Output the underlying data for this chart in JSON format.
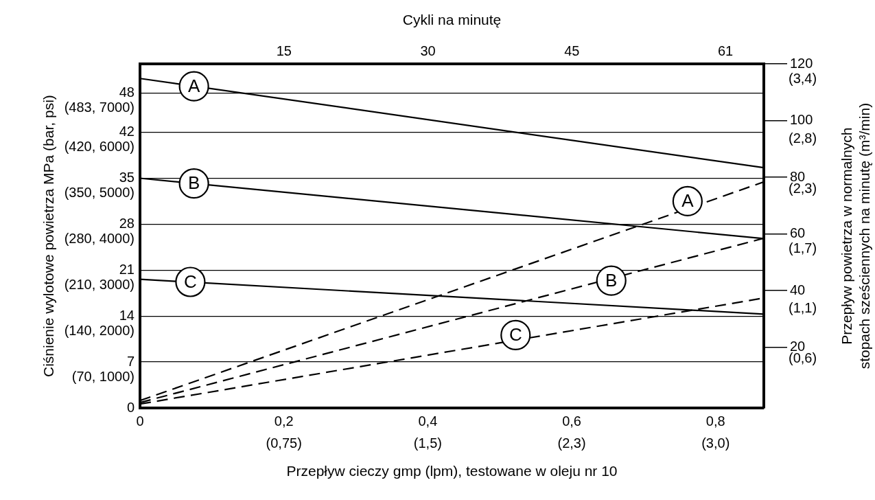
{
  "chart_data": {
    "type": "line",
    "xlabel": "Przepływ cieczy gmp (lpm), testowane w oleju nr 10",
    "ylabel": "Ciśnienie wylotowe powietrza MPa (bar, psi)",
    "y2label": "Przepływ powietrza w normalnych\nstopach sześciennych na minutę (m³/min)",
    "x2label": "Cykli na minutę",
    "x": [
      0,
      0.867
    ],
    "xlim": [
      0,
      0.867
    ],
    "xticks": [
      0,
      {
        "value": 0.2,
        "label": "0,2"
      },
      {
        "value": 0.4,
        "label": "0,4"
      },
      {
        "value": 0.6,
        "label": "0,6"
      },
      {
        "value": 0.8,
        "label": "0,8"
      }
    ],
    "x2lim": [
      0,
      65
    ],
    "x2ticks": [
      15,
      30,
      45,
      61
    ],
    "ylim": [
      0,
      52.4
    ],
    "yticks": [
      0,
      7,
      14,
      21,
      28,
      35,
      42,
      48
    ],
    "y2lim": [
      -1.4,
      120
    ],
    "y2ticks": [
      20,
      40,
      60,
      80,
      100,
      120
    ],
    "y3lim": [
      0.11,
      3.55
    ],
    "y3ticks": [
      {
        "value": 0.6,
        "label": "(0,6)"
      },
      {
        "value": 1.1,
        "label": "(1,1)"
      },
      {
        "value": 1.7,
        "label": "(1,7)"
      },
      {
        "value": 2.3,
        "label": "(2,3)"
      },
      {
        "value": 2.8,
        "label": "(2,8)"
      },
      {
        "value": 3.4,
        "label": "(3,4)"
      }
    ],
    "grid": true,
    "marker": "none",
    "series": [
      {
        "color": "#000000",
        "values": [
          50.2,
          36.6
        ],
        "line_style": "solid"
      },
      {
        "color": "#000000",
        "values": [
          35.0,
          25.8
        ],
        "line_style": "solid"
      },
      {
        "color": "#000000",
        "values": [
          19.6,
          14.3
        ],
        "line_style": "solid"
      },
      {
        "color": "#000000",
        "values": [
          1.2,
          78.4
        ],
        "line_style": "dashed",
        "axis": "y2"
      },
      {
        "color": "#000000",
        "values": [
          0.5,
          58.5
        ],
        "line_style": "dashed",
        "axis": "y2"
      },
      {
        "color": "#000000",
        "values": [
          0,
          37.4
        ],
        "line_style": "dashed",
        "axis": "y2"
      }
    ],
    "annotations": [
      {
        "text": "A",
        "x": 0.075,
        "y": 49.0
      },
      {
        "text": "B",
        "x": 0.075,
        "y": 34.2
      },
      {
        "text": "C",
        "x": 0.07,
        "y": 19.2
      },
      {
        "text": "A",
        "x": 0.761,
        "y": 31.5
      },
      {
        "text": "B",
        "x": 0.655,
        "y": 19.4
      },
      {
        "text": "C",
        "x": 0.522,
        "y": 11.1
      },
      "(70, 1000)",
      "(140, 2000)",
      "(210, 3000)",
      "(280, 4000)",
      "(350, 5000)",
      "(420, 6000)",
      "(483, 7000)",
      "(0,75)",
      "(1,5)",
      "(2,3)",
      "(3,0)"
    ]
  }
}
